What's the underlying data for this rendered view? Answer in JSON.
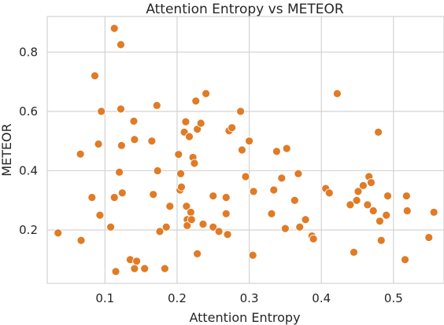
{
  "chart_data": {
    "type": "scatter",
    "title": "Attention Entropy vs METEOR",
    "xlabel": "Attention Entropy",
    "ylabel": "METEOR",
    "xlim": [
      0.02,
      0.57
    ],
    "ylim": [
      0.02,
      0.92
    ],
    "xticks": [
      0.1,
      0.2,
      0.3,
      0.4,
      0.5
    ],
    "xtick_labels": [
      "0.1",
      "0.2",
      "0.3",
      "0.4",
      "0.5"
    ],
    "yticks": [
      0.2,
      0.4,
      0.6,
      0.8
    ],
    "ytick_labels": [
      "0.2",
      "0.4",
      "0.6",
      "0.8"
    ],
    "grid": true,
    "marker_color": "#e07b26",
    "points": [
      [
        0.035,
        0.19
      ],
      [
        0.066,
        0.456
      ],
      [
        0.067,
        0.165
      ],
      [
        0.082,
        0.31
      ],
      [
        0.086,
        0.72
      ],
      [
        0.091,
        0.49
      ],
      [
        0.093,
        0.25
      ],
      [
        0.095,
        0.6
      ],
      [
        0.108,
        0.21
      ],
      [
        0.113,
        0.88
      ],
      [
        0.113,
        0.31
      ],
      [
        0.115,
        0.06
      ],
      [
        0.12,
        0.395
      ],
      [
        0.122,
        0.825
      ],
      [
        0.122,
        0.608
      ],
      [
        0.123,
        0.485
      ],
      [
        0.124,
        0.325
      ],
      [
        0.135,
        0.1
      ],
      [
        0.14,
        0.567
      ],
      [
        0.141,
        0.505
      ],
      [
        0.141,
        0.07
      ],
      [
        0.144,
        0.095
      ],
      [
        0.155,
        0.07
      ],
      [
        0.165,
        0.5
      ],
      [
        0.167,
        0.32
      ],
      [
        0.172,
        0.62
      ],
      [
        0.173,
        0.4
      ],
      [
        0.176,
        0.195
      ],
      [
        0.183,
        0.07
      ],
      [
        0.185,
        0.21
      ],
      [
        0.19,
        0.28
      ],
      [
        0.202,
        0.455
      ],
      [
        0.204,
        0.335
      ],
      [
        0.205,
        0.39
      ],
      [
        0.206,
        0.345
      ],
      [
        0.21,
        0.53
      ],
      [
        0.212,
        0.565
      ],
      [
        0.213,
        0.28
      ],
      [
        0.214,
        0.235
      ],
      [
        0.214,
        0.215
      ],
      [
        0.217,
        0.515
      ],
      [
        0.219,
        0.26
      ],
      [
        0.22,
        0.235
      ],
      [
        0.222,
        0.445
      ],
      [
        0.224,
        0.425
      ],
      [
        0.226,
        0.635
      ],
      [
        0.228,
        0.54
      ],
      [
        0.228,
        0.12
      ],
      [
        0.233,
        0.56
      ],
      [
        0.236,
        0.22
      ],
      [
        0.24,
        0.66
      ],
      [
        0.25,
        0.315
      ],
      [
        0.25,
        0.21
      ],
      [
        0.258,
        0.195
      ],
      [
        0.268,
        0.31
      ],
      [
        0.268,
        0.255
      ],
      [
        0.27,
        0.185
      ],
      [
        0.272,
        0.535
      ],
      [
        0.276,
        0.545
      ],
      [
        0.288,
        0.6
      ],
      [
        0.29,
        0.47
      ],
      [
        0.295,
        0.38
      ],
      [
        0.3,
        0.5
      ],
      [
        0.305,
        0.33
      ],
      [
        0.305,
        0.115
      ],
      [
        0.306,
        0.33
      ],
      [
        0.331,
        0.255
      ],
      [
        0.334,
        0.335
      ],
      [
        0.338,
        0.465
      ],
      [
        0.345,
        0.375
      ],
      [
        0.35,
        0.205
      ],
      [
        0.352,
        0.475
      ],
      [
        0.363,
        0.3
      ],
      [
        0.368,
        0.39
      ],
      [
        0.37,
        0.21
      ],
      [
        0.378,
        0.235
      ],
      [
        0.387,
        0.18
      ],
      [
        0.389,
        0.17
      ],
      [
        0.406,
        0.34
      ],
      [
        0.411,
        0.325
      ],
      [
        0.422,
        0.66
      ],
      [
        0.44,
        0.285
      ],
      [
        0.445,
        0.125
      ],
      [
        0.449,
        0.3
      ],
      [
        0.451,
        0.33
      ],
      [
        0.458,
        0.35
      ],
      [
        0.464,
        0.285
      ],
      [
        0.466,
        0.38
      ],
      [
        0.469,
        0.36
      ],
      [
        0.472,
        0.265
      ],
      [
        0.479,
        0.53
      ],
      [
        0.481,
        0.23
      ],
      [
        0.483,
        0.165
      ],
      [
        0.49,
        0.25
      ],
      [
        0.492,
        0.315
      ],
      [
        0.516,
        0.1
      ],
      [
        0.518,
        0.315
      ],
      [
        0.519,
        0.265
      ],
      [
        0.549,
        0.175
      ],
      [
        0.556,
        0.26
      ]
    ]
  }
}
